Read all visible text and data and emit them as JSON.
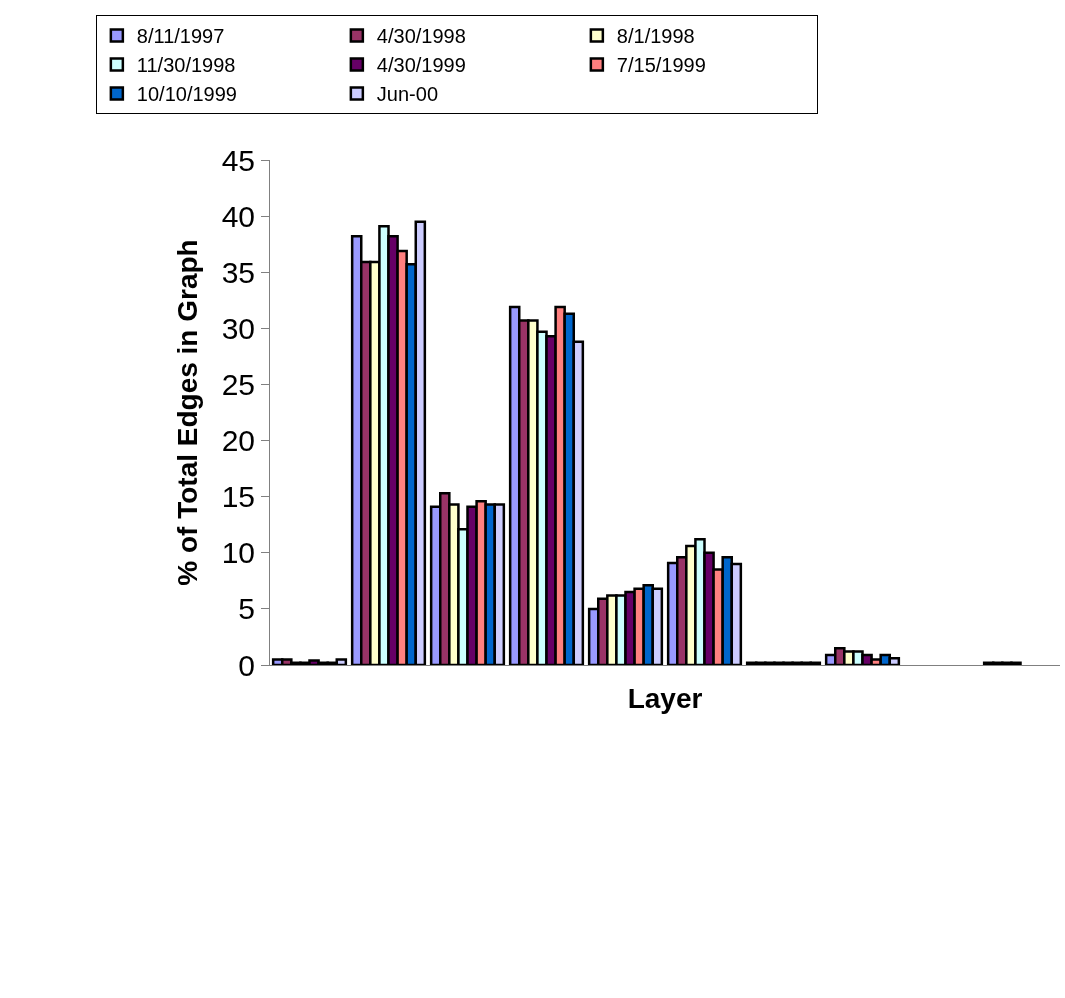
{
  "chart_data": {
    "type": "bar",
    "xlabel": "Layer",
    "ylabel": "% of Total Edges in Graph",
    "categories": [
      null,
      null,
      null,
      null,
      null,
      null,
      null,
      null,
      null,
      null
    ],
    "series": [
      {
        "name": "8/11/1997",
        "color": "#9999ff",
        "values": [
          0.5,
          38.2,
          14.1,
          31.9,
          5.0,
          9.1,
          0.2,
          0.9,
          null,
          0.2
        ]
      },
      {
        "name": "4/30/1998",
        "color": "#993366",
        "values": [
          0.5,
          35.9,
          15.3,
          30.7,
          5.9,
          9.6,
          0.2,
          1.5,
          null,
          0.2
        ]
      },
      {
        "name": "8/1/1998",
        "color": "#ffffcc",
        "values": [
          0.2,
          35.9,
          14.3,
          30.7,
          6.2,
          10.6,
          0.2,
          1.2,
          null,
          0.2
        ]
      },
      {
        "name": "11/30/1998",
        "color": "#ccffff",
        "values": [
          0.2,
          39.1,
          12.1,
          29.7,
          6.2,
          11.2,
          0.2,
          1.2,
          null,
          0.2
        ]
      },
      {
        "name": "4/30/1999",
        "color": "#660066",
        "values": [
          0.4,
          38.2,
          14.1,
          29.3,
          6.5,
          10.0,
          0.2,
          0.9,
          null,
          null
        ]
      },
      {
        "name": "7/15/1999",
        "color": "#ff8080",
        "values": [
          0.2,
          36.9,
          14.6,
          31.9,
          6.8,
          8.5,
          0.2,
          0.5,
          null,
          null
        ]
      },
      {
        "name": "10/10/1999",
        "color": "#0066cc",
        "values": [
          0.2,
          35.7,
          14.3,
          31.3,
          7.1,
          9.6,
          0.2,
          0.9,
          null,
          null
        ]
      },
      {
        "name": "Jun-00",
        "color": "#ccccff",
        "values": [
          0.5,
          39.5,
          14.3,
          28.8,
          6.8,
          9.0,
          0.2,
          0.6,
          null,
          null
        ]
      }
    ],
    "ylim": [
      0,
      45
    ],
    "yticks": [
      0,
      5,
      10,
      15,
      20,
      25,
      30,
      35,
      40,
      45
    ],
    "legend": "top"
  }
}
